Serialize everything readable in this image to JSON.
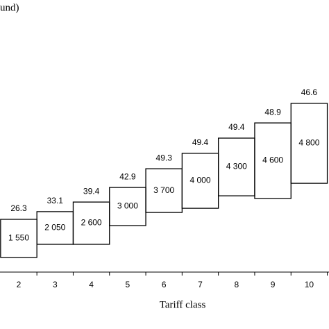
{
  "chart_data": {
    "type": "range-bar",
    "y_label": "und)",
    "x_label": "Tariff class",
    "categories": [
      "2",
      "3",
      "4",
      "5",
      "6",
      "7",
      "8",
      "9",
      "10"
    ],
    "low": [
      9.7,
      16,
      16,
      25,
      31.3,
      33.3,
      39.3,
      38,
      45.3
    ],
    "high": [
      28,
      31.7,
      36.3,
      43.3,
      52.3,
      59.7,
      67,
      74.3,
      83.7
    ],
    "inner_values": [
      1550,
      2050,
      2600,
      3000,
      3700,
      4000,
      4300,
      4600,
      4800
    ],
    "inner_value_labels": [
      "1 550",
      "2 050",
      "2 600",
      "3 000",
      "3 700",
      "4 000",
      "4 300",
      "4 600",
      "4 800"
    ],
    "top_values": [
      26.3,
      33.1,
      39.4,
      42.9,
      49.3,
      49.4,
      49.4,
      48.9,
      46.6
    ],
    "ylim": [
      0,
      100
    ],
    "color": "#000000"
  }
}
